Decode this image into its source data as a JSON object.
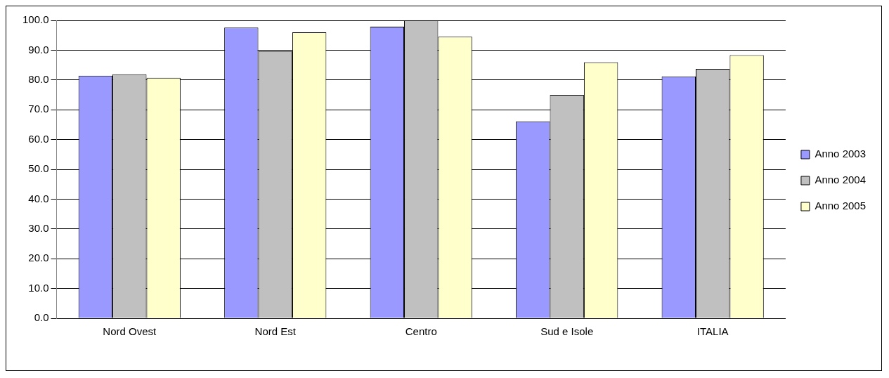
{
  "chart_data": {
    "type": "bar",
    "categories": [
      "Nord Ovest",
      "Nord Est",
      "Centro",
      "Sud e Isole",
      "ITALIA"
    ],
    "series": [
      {
        "name": "Anno 2003",
        "color": "#9999ff",
        "values": [
          81.4,
          97.6,
          97.9,
          66.1,
          81.2
        ]
      },
      {
        "name": "Anno 2004",
        "color": "#c0c0c0",
        "values": [
          81.9,
          89.7,
          100.0,
          75.0,
          83.7
        ]
      },
      {
        "name": "Anno 2005",
        "color": "#ffffcc",
        "values": [
          80.7,
          96.0,
          94.5,
          85.9,
          88.3
        ]
      }
    ],
    "ylim": [
      0,
      100
    ],
    "yticks": [
      {
        "value": 0,
        "label": "0.0"
      },
      {
        "value": 10,
        "label": "10.0"
      },
      {
        "value": 20,
        "label": "20.0"
      },
      {
        "value": 30,
        "label": "30.0"
      },
      {
        "value": 40,
        "label": "40.0"
      },
      {
        "value": 50,
        "label": "50.0"
      },
      {
        "value": 60,
        "label": "60.0"
      },
      {
        "value": 70,
        "label": "70.0"
      },
      {
        "value": 80,
        "label": "80.0"
      },
      {
        "value": 90,
        "label": "90.0"
      },
      {
        "value": 100,
        "label": "100.0"
      }
    ],
    "grid": "y",
    "legend": "right"
  }
}
